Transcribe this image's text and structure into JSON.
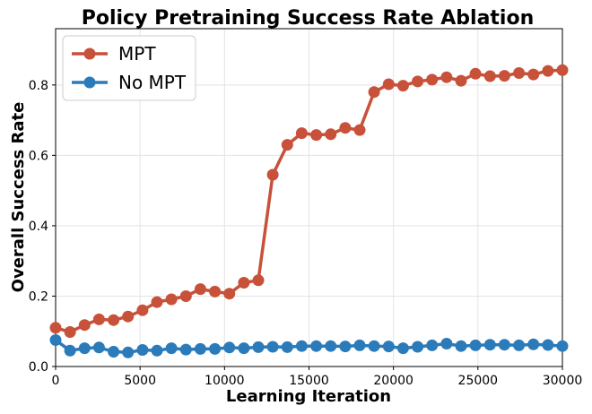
{
  "chart_data": {
    "type": "line",
    "title": "Policy Pretraining Success Rate Ablation",
    "xlabel": "Learning Iteration",
    "ylabel": "Overall Success Rate",
    "xlim": [
      0,
      30000
    ],
    "ylim": [
      0,
      0.96
    ],
    "grid": true,
    "legend_position": "top-left",
    "xticks": [
      0,
      5000,
      10000,
      15000,
      20000,
      25000,
      30000
    ],
    "xtick_labels": [
      "0",
      "5000",
      "10000",
      "15000",
      "20000",
      "25000",
      "30000"
    ],
    "yticks": [
      0.0,
      0.2,
      0.4,
      0.6,
      0.8
    ],
    "ytick_labels": [
      "0.0",
      "0.2",
      "0.4",
      "0.6",
      "0.8"
    ],
    "x": [
      0,
      857,
      1714,
      2571,
      3429,
      4286,
      5143,
      6000,
      6857,
      7714,
      8571,
      9429,
      10286,
      11143,
      12000,
      12857,
      13714,
      14571,
      15429,
      16286,
      17143,
      18000,
      18857,
      19714,
      20571,
      21429,
      22286,
      23143,
      24000,
      24857,
      25714,
      26571,
      27429,
      28286,
      29143,
      30000
    ],
    "series": [
      {
        "name": "MPT",
        "color": "#c8513a",
        "values": [
          0.11,
          0.098,
          0.118,
          0.134,
          0.132,
          0.142,
          0.16,
          0.183,
          0.191,
          0.2,
          0.22,
          0.213,
          0.207,
          0.238,
          0.245,
          0.545,
          0.63,
          0.663,
          0.658,
          0.66,
          0.678,
          0.672,
          0.78,
          0.802,
          0.798,
          0.81,
          0.815,
          0.822,
          0.812,
          0.832,
          0.825,
          0.826,
          0.834,
          0.83,
          0.84,
          0.842
        ]
      },
      {
        "name": "No MPT",
        "color": "#2b7bba",
        "values": [
          0.075,
          0.045,
          0.052,
          0.054,
          0.042,
          0.04,
          0.047,
          0.045,
          0.052,
          0.048,
          0.05,
          0.05,
          0.054,
          0.052,
          0.055,
          0.056,
          0.055,
          0.058,
          0.058,
          0.058,
          0.057,
          0.06,
          0.058,
          0.057,
          0.052,
          0.056,
          0.06,
          0.065,
          0.058,
          0.06,
          0.062,
          0.062,
          0.06,
          0.063,
          0.061,
          0.058
        ]
      }
    ]
  }
}
